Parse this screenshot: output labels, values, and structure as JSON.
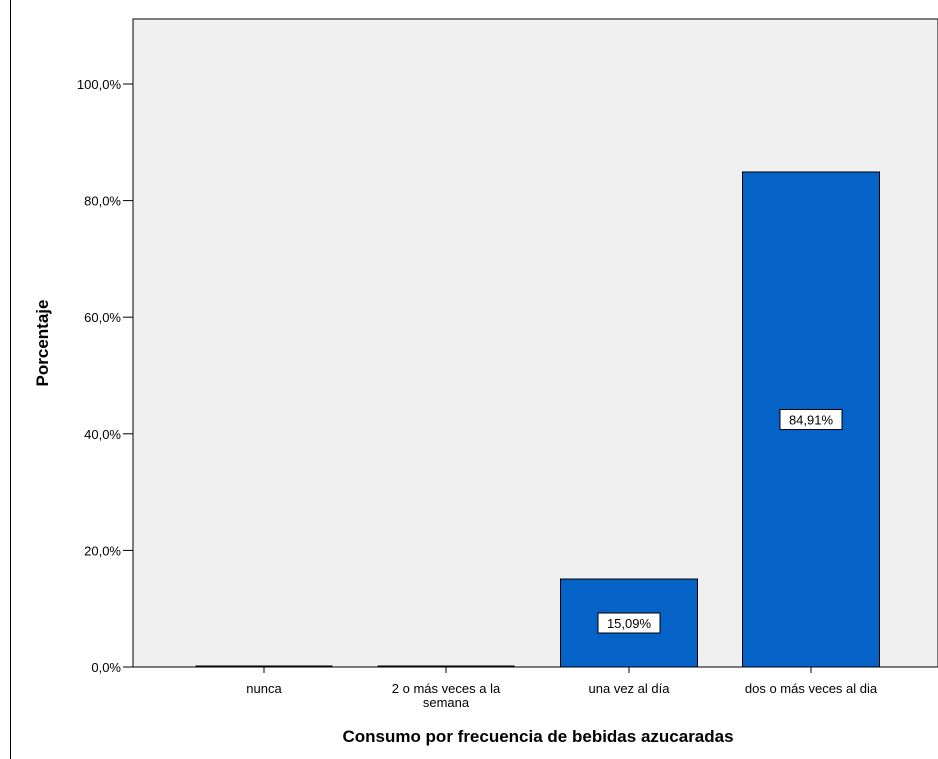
{
  "chart_data": {
    "type": "bar",
    "categories": [
      "nunca",
      "2 o más veces a la semana",
      "una vez al día",
      "dos o más veces al dia"
    ],
    "category_lines": [
      [
        "nunca"
      ],
      [
        "2 o más veces a la",
        "semana"
      ],
      [
        "una vez al día"
      ],
      [
        "dos o más veces al dia"
      ]
    ],
    "values": [
      0,
      0,
      15.09,
      84.91
    ],
    "data_labels": [
      "",
      "",
      "15,09%",
      "84,91%"
    ],
    "xlabel": "Consumo por frecuencia de bebidas azucaradas",
    "ylabel": "Porcentaje",
    "ylim": [
      0,
      110
    ],
    "yticks": [
      0,
      20,
      40,
      60,
      80,
      100
    ],
    "ytick_labels": [
      "0,0%",
      "20,0%",
      "40,0%",
      "60,0%",
      "80,0%",
      "100,0%"
    ],
    "grid": false,
    "colors": {
      "bar_fill": "#0563C8",
      "bar_stroke": "#000000",
      "plot_background": "#F0F0F0",
      "axis": "#000000"
    }
  }
}
